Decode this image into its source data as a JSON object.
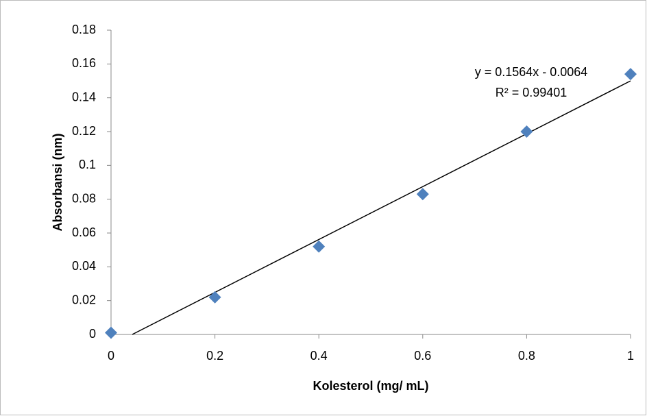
{
  "chart_data": {
    "type": "scatter",
    "x_label": "Kolesterol (mg/ mL)",
    "y_label": "Absorbansi (nm)",
    "series": [
      {
        "color": "#4f81bd",
        "x": [
          0,
          0.2,
          0.4,
          0.6,
          0.8,
          1
        ],
        "values": [
          0.001,
          0.022,
          0.052,
          0.083,
          0.12,
          0.154
        ]
      }
    ],
    "trendline": {
      "equation": "y = 0.1564x - 0.0064",
      "r2": "R² = 0.99401",
      "slope": 0.1564,
      "intercept": -0.0064,
      "color": "#000000"
    },
    "xlim": [
      0,
      1
    ],
    "xticks": [
      0,
      0.2,
      0.4,
      0.6,
      0.8,
      1
    ],
    "ylim": [
      0,
      0.18
    ],
    "yticks": [
      0,
      0.02,
      0.04,
      0.06,
      0.08,
      0.1,
      0.12,
      0.14,
      0.16,
      0.18
    ],
    "grid": false
  }
}
